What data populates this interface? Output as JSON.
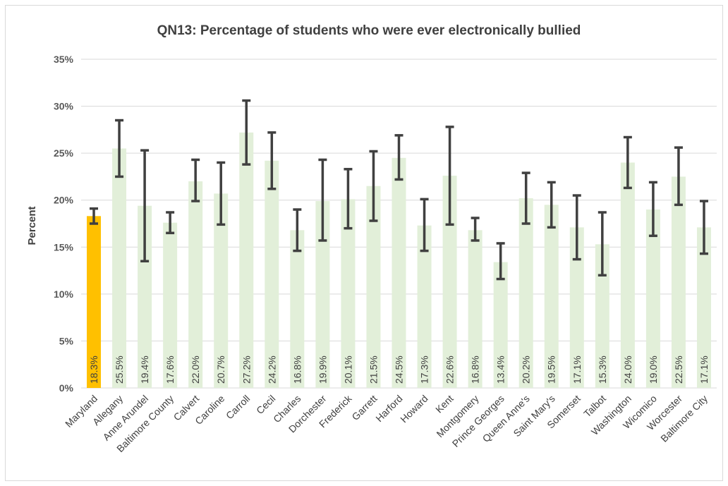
{
  "chart_data": {
    "type": "bar",
    "title": "QN13: Percentage of students who were ever electronically bullied",
    "ylabel": "Percent",
    "xlabel": "",
    "ylim": [
      0,
      35
    ],
    "yticks": [
      "0%",
      "5%",
      "10%",
      "15%",
      "20%",
      "25%",
      "30%",
      "35%"
    ],
    "grid": true,
    "legend": "none",
    "colors": {
      "highlight": "#FFC000",
      "default": "#E2EFD9",
      "error_bar": "#404040",
      "grid": "#D9D9D9"
    },
    "categories": [
      "Maryland",
      "Allegany",
      "Anne Arundel",
      "Baltimore County",
      "Calvert",
      "Caroline",
      "Carroll",
      "Cecil",
      "Charles",
      "Dorchester",
      "Frederick",
      "Garrett",
      "Harford",
      "Howard",
      "Kent",
      "Montgomery",
      "Prince Georges",
      "Queen Anne's",
      "Saint Mary's",
      "Somerset",
      "Talbot",
      "Washington",
      "Wicomico",
      "Worcester",
      "Baltimore City"
    ],
    "values": [
      18.3,
      25.5,
      19.4,
      17.6,
      22.0,
      20.7,
      27.2,
      24.2,
      16.8,
      19.9,
      20.1,
      21.5,
      24.5,
      17.3,
      22.6,
      16.8,
      13.4,
      20.2,
      19.5,
      17.1,
      15.3,
      24.0,
      19.0,
      22.5,
      17.1
    ],
    "value_labels": [
      "18.3%",
      "25.5%",
      "19.4%",
      "17.6%",
      "22.0%",
      "20.7%",
      "27.2%",
      "24.2%",
      "16.8%",
      "19.9%",
      "20.1%",
      "21.5%",
      "24.5%",
      "17.3%",
      "22.6%",
      "16.8%",
      "13.4%",
      "20.2%",
      "19.5%",
      "17.1%",
      "15.3%",
      "24.0%",
      "19.0%",
      "22.5%",
      "17.1%"
    ],
    "ci_low": [
      17.5,
      22.5,
      13.5,
      16.5,
      19.9,
      17.4,
      23.8,
      21.2,
      14.6,
      15.7,
      17.0,
      17.8,
      22.2,
      14.6,
      17.4,
      15.7,
      11.6,
      17.5,
      17.1,
      13.7,
      12.0,
      21.3,
      16.2,
      19.5,
      14.3
    ],
    "ci_high": [
      19.1,
      28.5,
      25.3,
      18.7,
      24.3,
      24.0,
      30.6,
      27.2,
      19.0,
      24.3,
      23.3,
      25.2,
      26.9,
      20.1,
      27.8,
      18.1,
      15.4,
      22.9,
      21.9,
      20.5,
      18.7,
      26.7,
      21.9,
      25.6,
      19.9
    ],
    "highlight_index": 0
  }
}
